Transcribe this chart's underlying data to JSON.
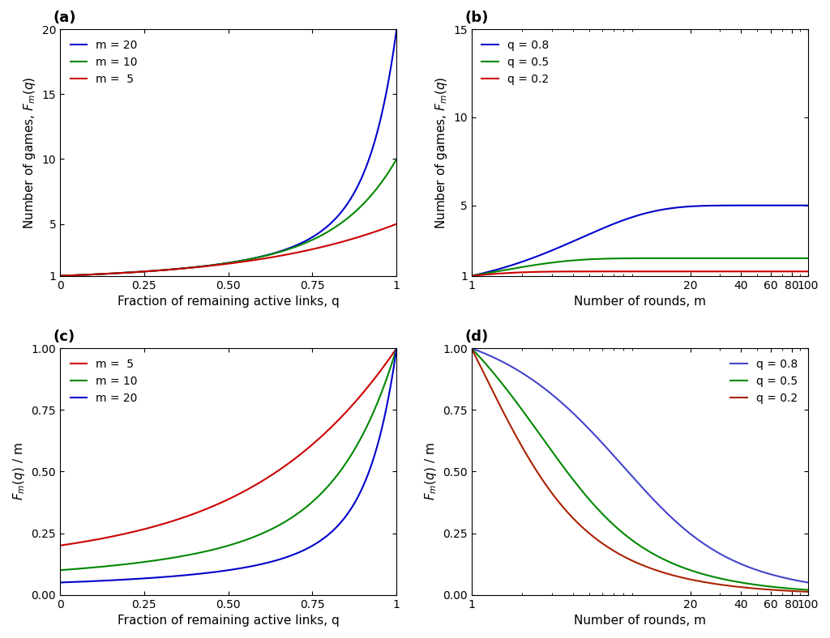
{
  "panel_a": {
    "m_values": [
      20,
      10,
      5
    ],
    "colors": [
      "#0000cc",
      "#008800",
      "#cc0000"
    ],
    "labels": [
      "m = 20",
      "m = 10",
      "m =  5"
    ],
    "xlabel": "Fraction of remaining active links, q",
    "ylabel": "Number of games, $F_m(q)$",
    "ylim": [
      1,
      20
    ],
    "xlim": [
      0,
      1
    ],
    "yticks": [
      1,
      5,
      10,
      15,
      20
    ],
    "xticks": [
      0,
      0.25,
      0.5,
      0.75,
      1.0
    ],
    "xtick_labels": [
      "0",
      "0.25",
      "0.50",
      "0.75",
      "1"
    ],
    "panel_label": "(a)"
  },
  "panel_b": {
    "q_values": [
      0.8,
      0.5,
      0.2
    ],
    "colors": [
      "#0000cc",
      "#008800",
      "#cc0000"
    ],
    "labels": [
      "q = 0.8",
      "q = 0.5",
      "q = 0.2"
    ],
    "xlabel": "Number of rounds, m",
    "ylabel": "Number of games, $F_m(q)$",
    "ylim": [
      1,
      15
    ],
    "xlim": [
      1,
      100
    ],
    "yticks": [
      1,
      5,
      10,
      15
    ],
    "xticks": [
      1,
      20,
      40,
      60,
      80,
      100
    ],
    "log_x": true,
    "panel_label": "(b)"
  },
  "panel_c": {
    "m_values": [
      5,
      10,
      20
    ],
    "colors": [
      "#cc0000",
      "#008800",
      "#0000cc"
    ],
    "labels": [
      "m =  5",
      "m = 10",
      "m = 20"
    ],
    "xlabel": "Fraction of remaining active links, q",
    "ylabel": "$F_m(q)$ / m",
    "ylim": [
      0,
      1
    ],
    "xlim": [
      0,
      1
    ],
    "yticks": [
      0,
      0.25,
      0.5,
      0.75,
      1.0
    ],
    "xticks": [
      0,
      0.25,
      0.5,
      0.75,
      1.0
    ],
    "xtick_labels": [
      "0",
      "0.25",
      "0.50",
      "0.75",
      "1"
    ],
    "panel_label": "(c)"
  },
  "panel_d": {
    "q_values": [
      0.8,
      0.5,
      0.2
    ],
    "colors": [
      "#4444cc",
      "#008800",
      "#aa2200"
    ],
    "labels": [
      "q = 0.8",
      "q = 0.5",
      "q = 0.2"
    ],
    "xlabel": "Number of rounds, m",
    "ylabel": "$F_m(q)$ / m",
    "ylim": [
      0,
      1
    ],
    "xlim": [
      1,
      100
    ],
    "yticks": [
      0,
      0.25,
      0.5,
      0.75,
      1.0
    ],
    "xticks": [
      1,
      20,
      40,
      60,
      80,
      100
    ],
    "log_x": true,
    "panel_label": "(d)"
  },
  "background_color": "#ffffff",
  "linewidth": 1.5,
  "tick_fontsize": 10,
  "label_fontsize": 11,
  "legend_fontsize": 10
}
